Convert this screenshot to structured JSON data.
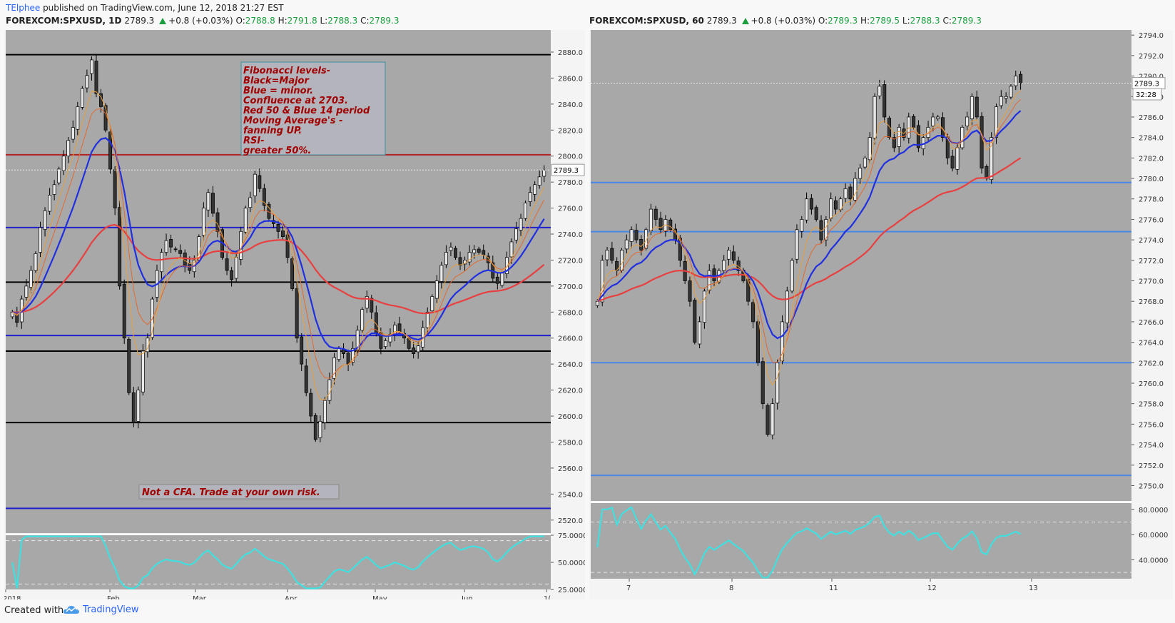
{
  "header": {
    "author": "TElphee",
    "published_text": "published on TradingView.com, June 12, 2018 21:27 EST"
  },
  "left_chart": {
    "symbol": "FOREXCOM:SPXUSD, 1D",
    "last": "2789.3",
    "change": "+0.8 (+0.03%)",
    "o_label": "O:",
    "o": "2788.8",
    "h_label": "H:",
    "h": "2791.8",
    "l_label": "L:",
    "l": "2788.3",
    "c_label": "C:",
    "c": "2789.3",
    "price_tag": "2789.3",
    "note_lines": [
      "Fibonacci levels-",
      "Black=Major",
      "Blue = minor.",
      "Confluence at 2703.",
      "Red 50 & Blue 14 period",
      "Moving Average's -",
      "fanning UP.",
      "RSI-",
      "greater 50%."
    ],
    "disclaimer": "Not a CFA. Trade at your own risk.",
    "rsi_ticks": [
      "75.0000",
      "50.0000",
      "25.0000"
    ]
  },
  "right_chart": {
    "symbol": "FOREXCOM:SPXUSD, 60",
    "last": "2789.3",
    "change": "+0.8 (+0.03%)",
    "o_label": "O:",
    "o": "2789.3",
    "h_label": "H:",
    "h": "2789.5",
    "l_label": "L:",
    "l": "2788.3",
    "c_label": "C:",
    "c": "2789.3",
    "price_tag": "2789.3",
    "countdown_tag": "32:28",
    "rsi_ticks": [
      "80.0000",
      "60.0000",
      "40.0000"
    ]
  },
  "footer": {
    "created_with": "Created with",
    "brand": "TradingView"
  },
  "chart_data": [
    {
      "type": "candlestick",
      "symbol": "FOREXCOM:SPXUSD",
      "interval": "1D",
      "ylim": [
        2510,
        2897
      ],
      "y_ticks": [
        2520,
        2540,
        2560,
        2580,
        2600,
        2620,
        2640,
        2660,
        2680,
        2700,
        2720,
        2740,
        2760,
        2780,
        2800,
        2820,
        2840,
        2860,
        2880
      ],
      "x_ticks": [
        "2018",
        "Feb",
        "Mar",
        "Apr",
        "May",
        "Jun",
        "1("
      ],
      "last_price": 2789.3,
      "horizontal_levels": [
        {
          "value": 2878,
          "color": "#000000",
          "kind": "fibonacci-major"
        },
        {
          "value": 2801,
          "color": "#b22222",
          "kind": "resistance"
        },
        {
          "value": 2745,
          "color": "#1f1fcc",
          "kind": "fibonacci-minor"
        },
        {
          "value": 2703,
          "color": "#000000",
          "kind": "fibonacci-major"
        },
        {
          "value": 2662,
          "color": "#1f1fcc",
          "kind": "fibonacci-minor"
        },
        {
          "value": 2650,
          "color": "#000000",
          "kind": "fibonacci-major"
        },
        {
          "value": 2595,
          "color": "#000000",
          "kind": "fibonacci-major"
        },
        {
          "value": 2529,
          "color": "#1f1fcc",
          "kind": "fibonacci-minor"
        }
      ],
      "close_series": [
        2680,
        2672,
        2690,
        2700,
        2712,
        2725,
        2745,
        2758,
        2770,
        2778,
        2790,
        2800,
        2812,
        2822,
        2838,
        2852,
        2862,
        2874,
        2848,
        2838,
        2820,
        2790,
        2760,
        2700,
        2660,
        2618,
        2595,
        2620,
        2650,
        2660,
        2690,
        2712,
        2726,
        2735,
        2730,
        2728,
        2725,
        2716,
        2712,
        2720,
        2738,
        2760,
        2772,
        2756,
        2742,
        2722,
        2712,
        2705,
        2722,
        2742,
        2760,
        2768,
        2786,
        2775,
        2762,
        2752,
        2748,
        2742,
        2738,
        2722,
        2698,
        2660,
        2640,
        2618,
        2600,
        2582,
        2596,
        2612,
        2628,
        2645,
        2652,
        2648,
        2640,
        2652,
        2666,
        2682,
        2692,
        2680,
        2664,
        2652,
        2658,
        2663,
        2670,
        2665,
        2660,
        2652,
        2648,
        2654,
        2668,
        2680,
        2692,
        2704,
        2716,
        2726,
        2730,
        2722,
        2716,
        2720,
        2726,
        2728,
        2726,
        2724,
        2718,
        2706,
        2702,
        2710,
        2722,
        2734,
        2744,
        2752,
        2764,
        2772,
        2778,
        2784,
        2789.3
      ],
      "series": [
        {
          "name": "",
          "color": "#e84040",
          "period": 50
        },
        {
          "name": "",
          "color": "#2030e0",
          "period": 14
        },
        {
          "name": "",
          "color": "#e36a2e",
          "period": 8
        },
        {
          "name": "",
          "color": "#e8a040",
          "period": 5
        }
      ],
      "rsi": {
        "ylim": [
          25,
          75
        ],
        "ticks": [
          75,
          50,
          25
        ],
        "bands": [
          70,
          30
        ],
        "color": "#40e0e0"
      }
    },
    {
      "type": "candlestick",
      "symbol": "FOREXCOM:SPXUSD",
      "interval": "60",
      "ylim": [
        2748.5,
        2794.5
      ],
      "y_ticks": [
        2750,
        2752,
        2754,
        2756,
        2758,
        2760,
        2762,
        2764,
        2766,
        2768,
        2770,
        2772,
        2774,
        2776,
        2778,
        2780,
        2782,
        2784,
        2786,
        2788,
        2790,
        2792,
        2794
      ],
      "x_ticks": [
        "7",
        "8",
        "11",
        "12",
        "13"
      ],
      "last_price": 2789.3,
      "horizontal_levels": [
        {
          "value": 2779.6,
          "color": "#4a86e8"
        },
        {
          "value": 2774.8,
          "color": "#4a86e8"
        },
        {
          "value": 2762.0,
          "color": "#4a86e8"
        },
        {
          "value": 2751.0,
          "color": "#4a86e8"
        }
      ],
      "close_series": [
        2768,
        2772,
        2773,
        2772,
        2771,
        2773,
        2774,
        2775,
        2774,
        2773,
        2775,
        2777,
        2776,
        2775,
        2776,
        2775,
        2774,
        2772,
        2770,
        2768,
        2764,
        2766,
        2769,
        2771,
        2770,
        2771,
        2772,
        2773,
        2772,
        2771,
        2770,
        2768,
        2766,
        2762,
        2758,
        2755,
        2758,
        2762,
        2766,
        2769,
        2772,
        2775,
        2776,
        2778,
        2777,
        2776,
        2774,
        2776,
        2778,
        2777,
        2778,
        2779,
        2778,
        2780,
        2781,
        2782,
        2784,
        2788,
        2789,
        2786,
        2784,
        2783,
        2785,
        2784,
        2786,
        2785,
        2783,
        2784,
        2785,
        2786,
        2786,
        2784,
        2782,
        2781,
        2783,
        2785,
        2786,
        2788,
        2786,
        2781,
        2780,
        2784,
        2787,
        2788,
        2788,
        2789,
        2790,
        2789.3
      ],
      "series": [
        {
          "name": "",
          "color": "#e84040",
          "period": 50
        },
        {
          "name": "",
          "color": "#2030e0",
          "period": 14
        },
        {
          "name": "",
          "color": "#e36a2e",
          "period": 8
        },
        {
          "name": "",
          "color": "#e8a040",
          "period": 5
        }
      ],
      "rsi": {
        "ylim": [
          25,
          85
        ],
        "ticks": [
          80,
          60,
          40
        ],
        "bands": [
          70,
          30
        ],
        "color": "#40e0e0"
      }
    }
  ]
}
